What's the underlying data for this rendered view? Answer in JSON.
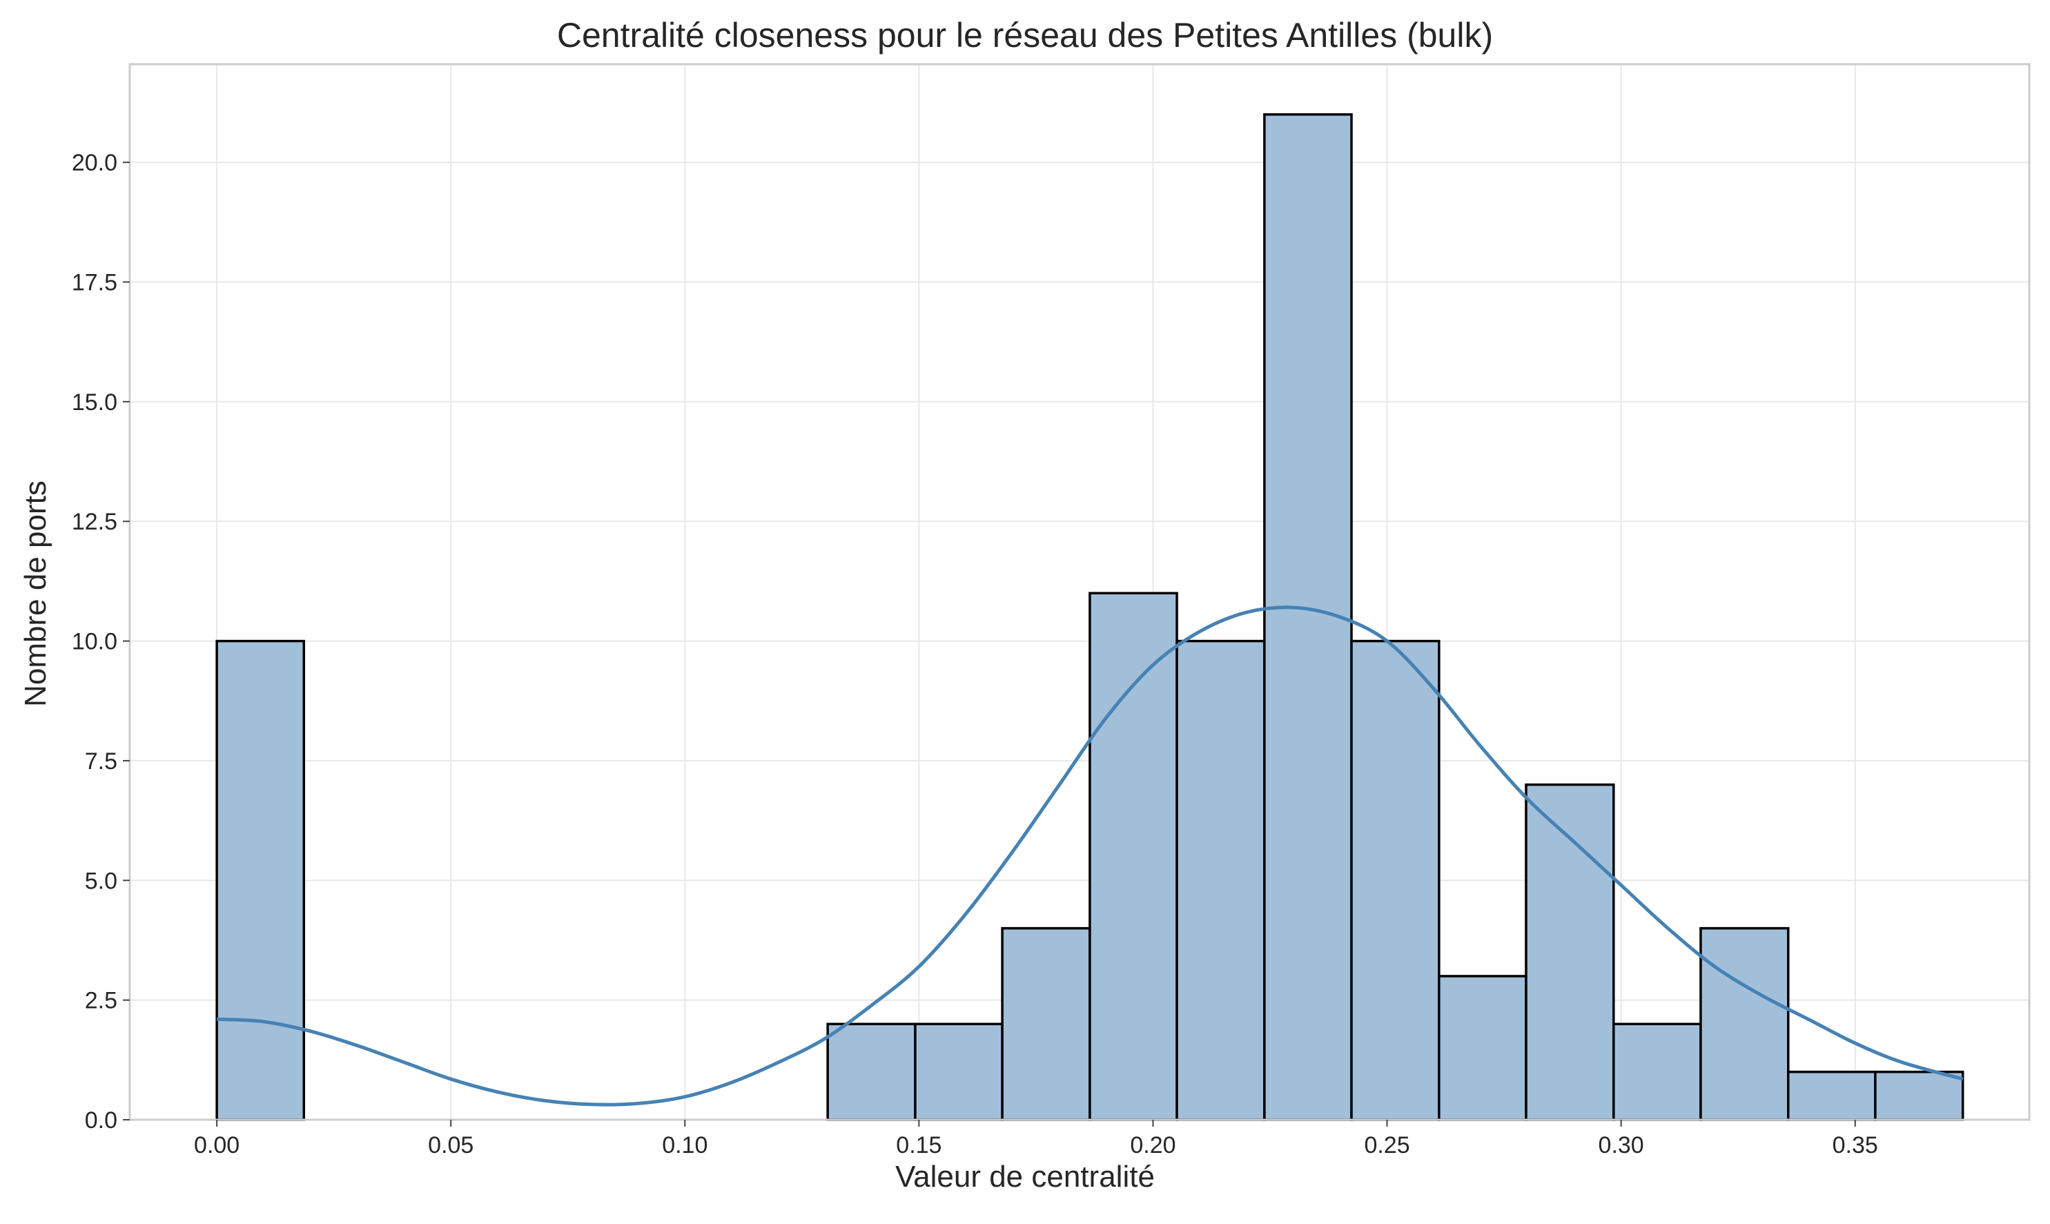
{
  "chart_data": {
    "type": "bar",
    "subtype": "histogram-with-kde",
    "title": "Centralité closeness pour le réseau des Petites Antilles (bulk)",
    "xlabel": "Valeur de centralité",
    "ylabel": "Nombre de ports",
    "xlim": [
      -0.0186,
      0.3872
    ],
    "ylim": [
      0,
      22.05
    ],
    "xticks": [
      "0.00",
      "0.05",
      "0.10",
      "0.15",
      "0.20",
      "0.25",
      "0.30",
      "0.35"
    ],
    "xtick_values": [
      0.0,
      0.05,
      0.1,
      0.15,
      0.2,
      0.25,
      0.3,
      0.35
    ],
    "yticks": [
      "0.0",
      "2.5",
      "5.0",
      "7.5",
      "10.0",
      "12.5",
      "15.0",
      "17.5",
      "20.0"
    ],
    "ytick_values": [
      0,
      2.5,
      5,
      7.5,
      10,
      12.5,
      15,
      17.5,
      20
    ],
    "grid": true,
    "bins": {
      "edges": [
        0.0,
        0.0186,
        0.0373,
        0.0559,
        0.0746,
        0.0932,
        0.1119,
        0.1305,
        0.1492,
        0.1678,
        0.1865,
        0.2051,
        0.2238,
        0.2424,
        0.2611,
        0.2797,
        0.2984,
        0.317,
        0.3357,
        0.3543,
        0.373
      ],
      "counts": [
        10,
        0,
        0,
        0,
        0,
        0,
        0,
        2,
        2,
        4,
        11,
        10,
        21,
        10,
        3,
        7,
        2,
        4,
        1,
        1
      ]
    },
    "kde": {
      "x": [
        0.0,
        0.01,
        0.02,
        0.03,
        0.04,
        0.05,
        0.06,
        0.07,
        0.08,
        0.09,
        0.1,
        0.11,
        0.12,
        0.13,
        0.14,
        0.15,
        0.16,
        0.17,
        0.18,
        0.19,
        0.2,
        0.21,
        0.22,
        0.23,
        0.24,
        0.25,
        0.26,
        0.27,
        0.28,
        0.29,
        0.3,
        0.31,
        0.32,
        0.33,
        0.34,
        0.35,
        0.36,
        0.373
      ],
      "y": [
        2.1,
        2.05,
        1.85,
        1.55,
        1.2,
        0.85,
        0.58,
        0.4,
        0.32,
        0.34,
        0.48,
        0.78,
        1.2,
        1.7,
        2.4,
        3.2,
        4.3,
        5.6,
        7.0,
        8.4,
        9.5,
        10.2,
        10.6,
        10.7,
        10.5,
        10.0,
        9.0,
        7.8,
        6.7,
        5.8,
        4.9,
        4.0,
        3.2,
        2.6,
        2.1,
        1.6,
        1.2,
        0.85
      ]
    },
    "colors": {
      "bar_fill": "#a2bfda",
      "bar_edge": "#000000",
      "kde_line": "#4682b4",
      "grid": "#e8e8e8",
      "axes": "#cccccc"
    }
  }
}
